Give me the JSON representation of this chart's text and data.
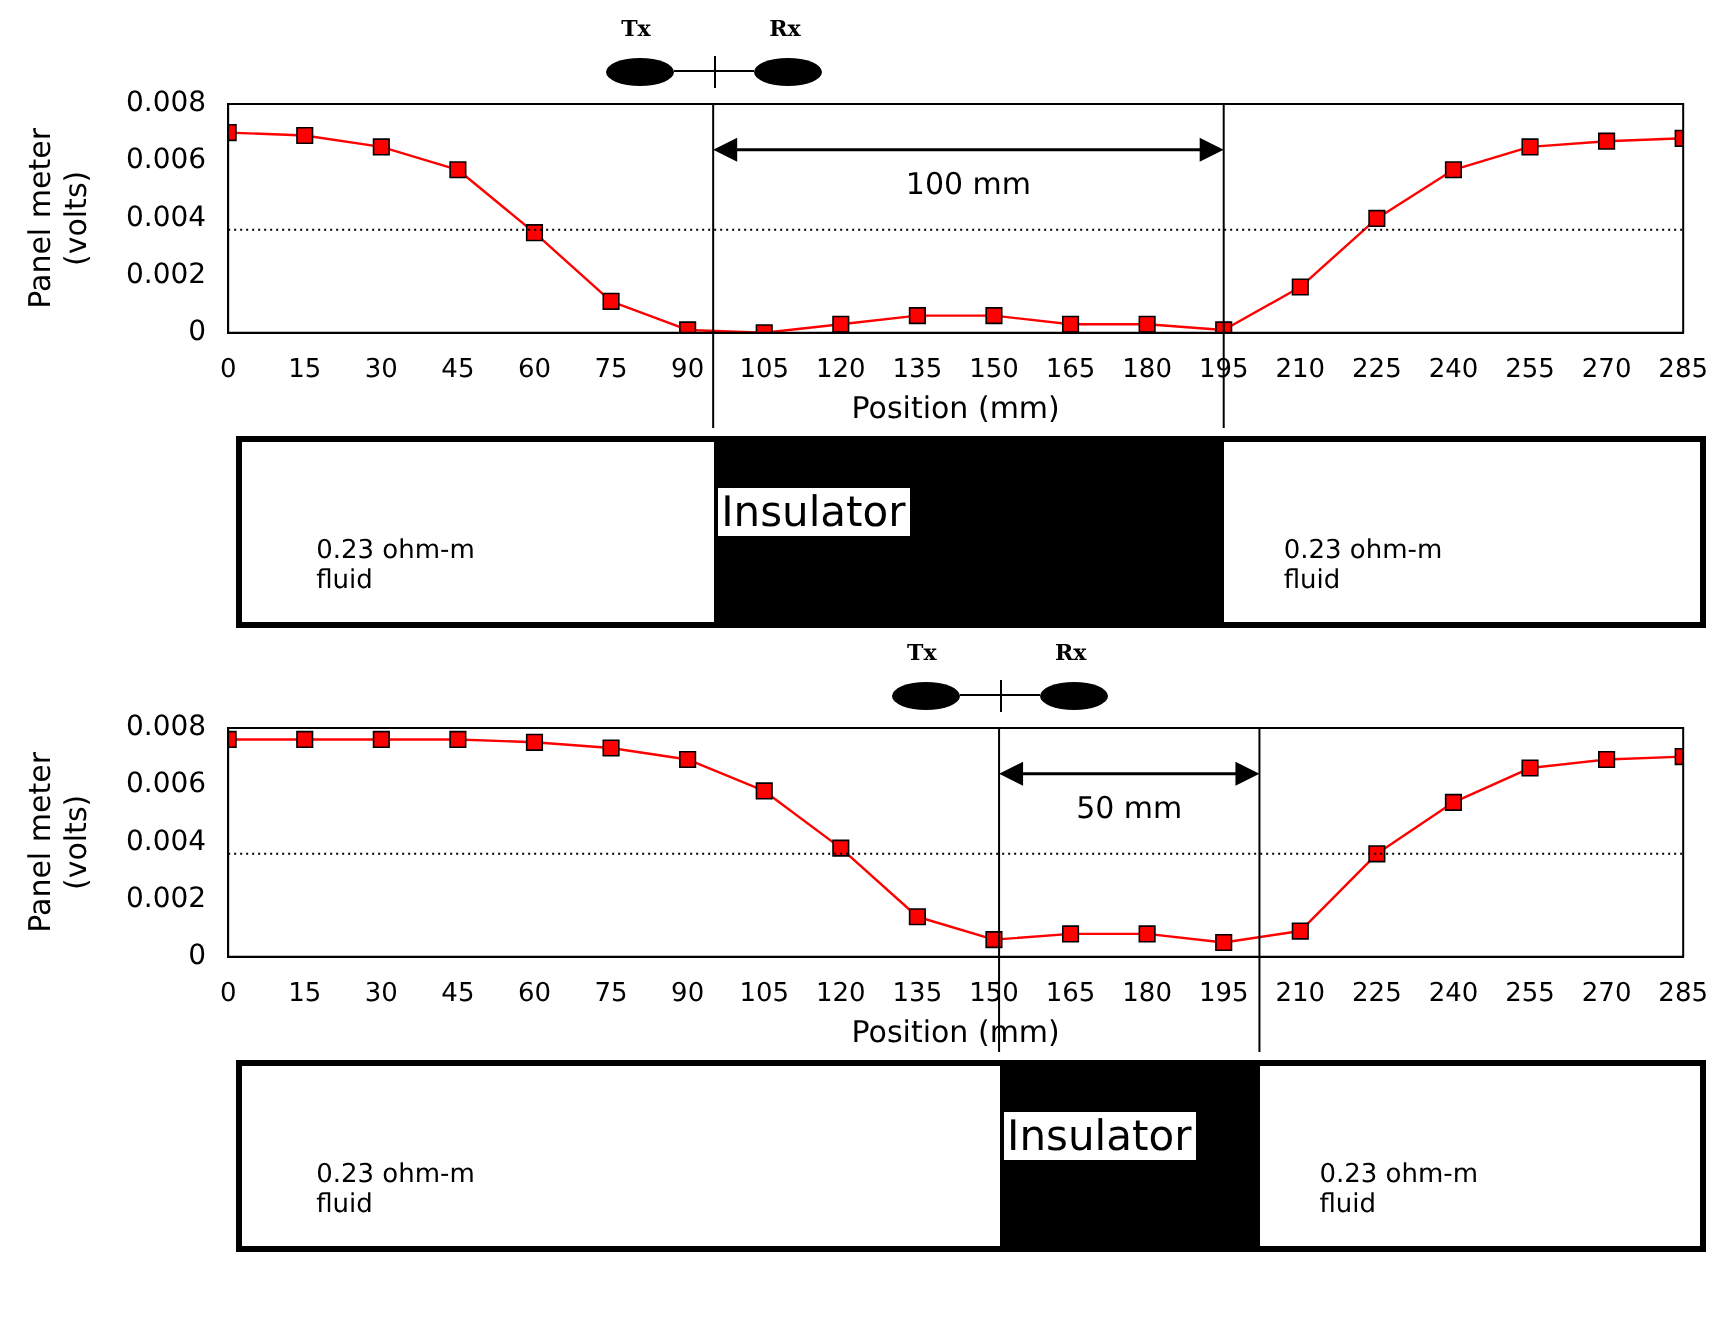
{
  "chart_data": [
    {
      "type": "line",
      "xlabel": "Position (mm)",
      "ylabel": "Panel meter (volts)",
      "marker": "square",
      "x": [
        0,
        15,
        30,
        45,
        60,
        75,
        90,
        105,
        120,
        135,
        150,
        165,
        180,
        195,
        210,
        225,
        240,
        255,
        270,
        285
      ],
      "xlim": [
        0,
        285
      ],
      "xticks": [
        0,
        15,
        30,
        45,
        60,
        75,
        90,
        105,
        120,
        135,
        150,
        165,
        180,
        195,
        210,
        225,
        240,
        255,
        270,
        285
      ],
      "ylim": [
        0,
        0.008
      ],
      "yticks": [
        0,
        0.002,
        0.004,
        0.006,
        0.008
      ],
      "series": [
        {
          "color": "#ff0000",
          "values": [
            0.007,
            0.0069,
            0.0065,
            0.0057,
            0.0035,
            0.0011,
            0.0001,
            0.0,
            0.0003,
            0.0006,
            0.0006,
            0.0003,
            0.0003,
            0.0001,
            0.0016,
            0.004,
            0.0057,
            0.0065,
            0.0067,
            0.0068
          ]
        }
      ],
      "ref_lines": [
        {
          "axis": "y",
          "value": 0.0036,
          "line_style": "dotted",
          "color": "#000000"
        },
        {
          "axis": "x",
          "value": 95,
          "color": "#000000"
        },
        {
          "axis": "x",
          "value": 195,
          "color": "#000000"
        }
      ],
      "annotations": [
        "100 mm",
        "Tx",
        "Rx",
        "Insulator",
        "0.23 ohm-m fluid",
        "0.23 ohm-m fluid"
      ]
    },
    {
      "type": "line",
      "xlabel": "Position (mm)",
      "ylabel": "Panel meter (volts)",
      "marker": "square",
      "x": [
        0,
        15,
        30,
        45,
        60,
        75,
        90,
        105,
        120,
        135,
        150,
        165,
        180,
        195,
        210,
        225,
        240,
        255,
        270,
        285
      ],
      "xlim": [
        0,
        285
      ],
      "xticks": [
        0,
        15,
        30,
        45,
        60,
        75,
        90,
        105,
        120,
        135,
        150,
        165,
        180,
        195,
        210,
        225,
        240,
        255,
        270,
        285
      ],
      "ylim": [
        0,
        0.008
      ],
      "yticks": [
        0,
        0.002,
        0.004,
        0.006,
        0.008
      ],
      "series": [
        {
          "color": "#ff0000",
          "values": [
            0.0076,
            0.0076,
            0.0076,
            0.0076,
            0.0075,
            0.0073,
            0.0069,
            0.0058,
            0.0038,
            0.0014,
            0.0006,
            0.0008,
            0.0008,
            0.0005,
            0.0009,
            0.0036,
            0.0054,
            0.0066,
            0.0069,
            0.007
          ]
        }
      ],
      "ref_lines": [
        {
          "axis": "y",
          "value": 0.0036,
          "line_style": "dotted",
          "color": "#000000"
        },
        {
          "axis": "x",
          "value": 151,
          "color": "#000000"
        },
        {
          "axis": "x",
          "value": 202,
          "color": "#000000"
        }
      ],
      "annotations": [
        "50 mm",
        "Tx",
        "Rx",
        "Insulator",
        "0.23 ohm-m fluid",
        "0.23 ohm-m fluid"
      ]
    }
  ]
}
